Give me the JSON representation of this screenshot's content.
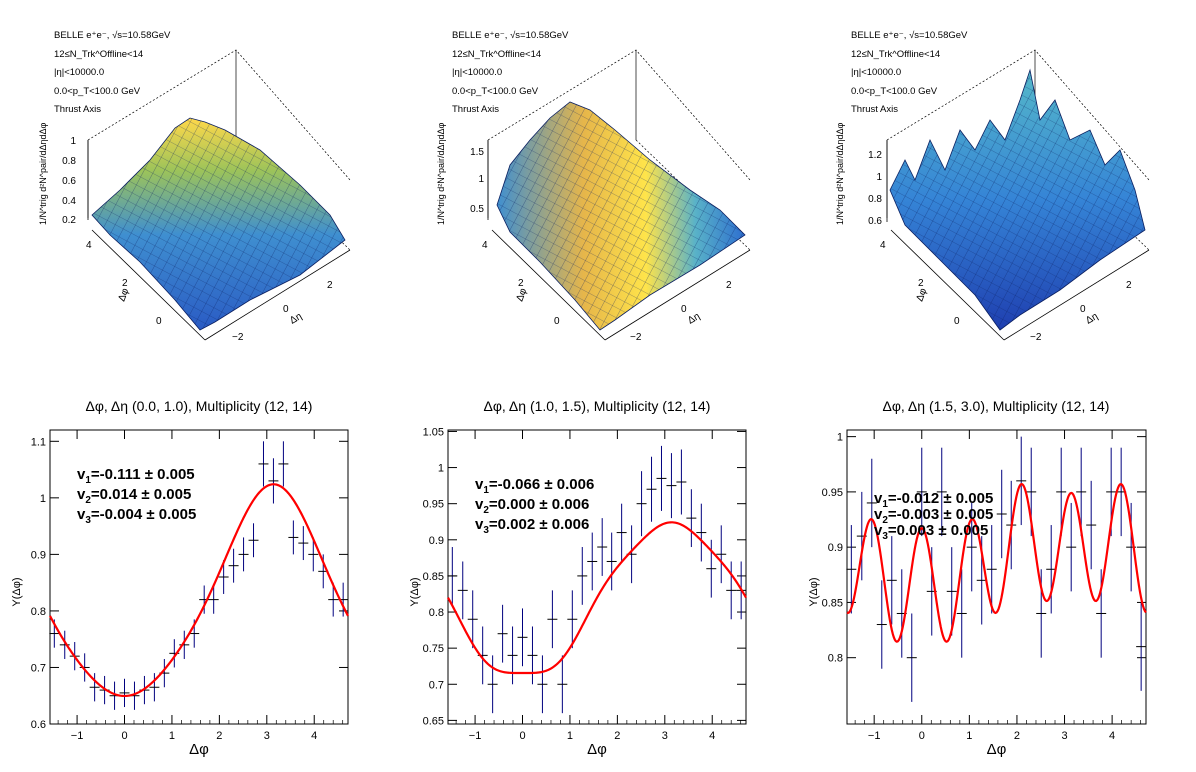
{
  "top_panels": [
    {
      "info": [
        "BELLE e⁺e⁻, √s=10.58GeV",
        "12≤N_Trk^Offline<14",
        "|η|<10000.0",
        "0.0<p_T<100.0 GeV",
        "Thrust Axis"
      ],
      "zlabel": "1/N^trig d²N^pair/dΔηdΔφ",
      "xlabel": "Δη",
      "ylabel": "Δφ",
      "zticks": [
        "0.2",
        "0.4",
        "0.6",
        "0.8",
        "1"
      ],
      "yticks": [
        "4",
        "2",
        "0"
      ],
      "xticks": [
        "2",
        "0",
        "−2"
      ],
      "surface": "peak"
    },
    {
      "info": [
        "BELLE e⁺e⁻, √s=10.58GeV",
        "12≤N_Trk^Offline<14",
        "|η|<10000.0",
        "0.0<p_T<100.0 GeV",
        "Thrust Axis"
      ],
      "zlabel": "1/N^trig d²N^pair/dΔηdΔφ",
      "xlabel": "Δη",
      "ylabel": "Δφ",
      "zticks": [
        "0.5",
        "1",
        "1.5"
      ],
      "yticks": [
        "4",
        "2",
        "0"
      ],
      "xticks": [
        "2",
        "0",
        "−2"
      ],
      "surface": "ridge"
    },
    {
      "info": [
        "BELLE e⁺e⁻, √s=10.58GeV",
        "12≤N_Trk^Offline<14",
        "|η|<10000.0",
        "0.0<p_T<100.0 GeV",
        "Thrust Axis"
      ],
      "zlabel": "1/N^trig d²N^pair/dΔηdΔφ",
      "xlabel": "Δη",
      "ylabel": "Δφ",
      "zticks": [
        "0.6",
        "0.8",
        "1",
        "1.2"
      ],
      "yticks": [
        "4",
        "2",
        "0"
      ],
      "xticks": [
        "2",
        "0",
        "−2"
      ],
      "surface": "noise"
    }
  ],
  "chart_data": [
    {
      "type": "scatter",
      "title": "Δφ, Δη (0.0, 1.0), Multiplicity (12, 14)",
      "xlabel": "Δφ",
      "ylabel": "Y(Δφ)",
      "xlim": [
        -1.571,
        4.712
      ],
      "ylim": [
        0.6,
        1.12
      ],
      "xticks": [
        -1,
        0,
        1,
        2,
        3,
        4
      ],
      "yticks": [
        0.6,
        0.7,
        0.8,
        0.9,
        1.0,
        1.1
      ],
      "ytick_labels": [
        "0.6",
        "0.7",
        "0.8",
        "0.9",
        "1",
        "1.1"
      ],
      "fit": {
        "c": 0.814,
        "v1": -0.111,
        "v2": 0.014,
        "v3": -0.004
      },
      "annotations": [
        "v1=-0.111 ± 0.005",
        "v2=0.014 ± 0.005",
        "v3=-0.004 ± 0.005"
      ],
      "points": [
        {
          "x": -1.48,
          "y": 0.76,
          "err": 0.025
        },
        {
          "x": -1.26,
          "y": 0.74,
          "err": 0.025
        },
        {
          "x": -1.05,
          "y": 0.72,
          "err": 0.025
        },
        {
          "x": -0.84,
          "y": 0.7,
          "err": 0.025
        },
        {
          "x": -0.63,
          "y": 0.665,
          "err": 0.025
        },
        {
          "x": -0.42,
          "y": 0.66,
          "err": 0.025
        },
        {
          "x": -0.21,
          "y": 0.65,
          "err": 0.025
        },
        {
          "x": 0.0,
          "y": 0.655,
          "err": 0.025
        },
        {
          "x": 0.21,
          "y": 0.65,
          "err": 0.025
        },
        {
          "x": 0.42,
          "y": 0.66,
          "err": 0.025
        },
        {
          "x": 0.63,
          "y": 0.665,
          "err": 0.025
        },
        {
          "x": 0.84,
          "y": 0.69,
          "err": 0.025
        },
        {
          "x": 1.05,
          "y": 0.725,
          "err": 0.025
        },
        {
          "x": 1.26,
          "y": 0.74,
          "err": 0.025
        },
        {
          "x": 1.47,
          "y": 0.76,
          "err": 0.025
        },
        {
          "x": 1.68,
          "y": 0.82,
          "err": 0.025
        },
        {
          "x": 1.88,
          "y": 0.82,
          "err": 0.025
        },
        {
          "x": 2.09,
          "y": 0.86,
          "err": 0.03
        },
        {
          "x": 2.3,
          "y": 0.88,
          "err": 0.03
        },
        {
          "x": 2.51,
          "y": 0.9,
          "err": 0.03
        },
        {
          "x": 2.72,
          "y": 0.925,
          "err": 0.03
        },
        {
          "x": 2.93,
          "y": 1.06,
          "err": 0.04
        },
        {
          "x": 3.14,
          "y": 1.03,
          "err": 0.04
        },
        {
          "x": 3.35,
          "y": 1.06,
          "err": 0.04
        },
        {
          "x": 3.56,
          "y": 0.93,
          "err": 0.03
        },
        {
          "x": 3.77,
          "y": 0.92,
          "err": 0.03
        },
        {
          "x": 3.98,
          "y": 0.9,
          "err": 0.03
        },
        {
          "x": 4.19,
          "y": 0.87,
          "err": 0.03
        },
        {
          "x": 4.4,
          "y": 0.82,
          "err": 0.03
        },
        {
          "x": 4.61,
          "y": 0.82,
          "err": 0.03
        }
      ]
    },
    {
      "type": "scatter",
      "title": "Δφ, Δη (1.0, 1.5), Multiplicity (12, 14)",
      "xlabel": "Δφ",
      "ylabel": "Y(Δφ)",
      "xlim": [
        -1.571,
        4.712
      ],
      "ylim": [
        0.645,
        1.052
      ],
      "xticks": [
        -1,
        0,
        1,
        2,
        3,
        4
      ],
      "yticks": [
        0.65,
        0.7,
        0.75,
        0.8,
        0.85,
        0.9,
        0.95,
        1.0,
        1.05
      ],
      "ytick_labels": [
        "0.65",
        "0.7",
        "0.75",
        "0.8",
        "0.85",
        "0.9",
        "0.95",
        "1",
        "1.05"
      ],
      "fit": {
        "c": 0.815,
        "v1": -0.066,
        "v2": 0.0,
        "v3": 0.002,
        "v4": 0.003
      },
      "annotations": [
        "v1=-0.066 ± 0.006",
        "v2=0.000 ± 0.006",
        "v3=0.002 ± 0.006"
      ],
      "points": [
        {
          "x": -1.48,
          "y": 0.85,
          "err": 0.04
        },
        {
          "x": -1.26,
          "y": 0.83,
          "err": 0.04
        },
        {
          "x": -1.05,
          "y": 0.79,
          "err": 0.04
        },
        {
          "x": -0.84,
          "y": 0.74,
          "err": 0.04
        },
        {
          "x": -0.63,
          "y": 0.7,
          "err": 0.04
        },
        {
          "x": -0.42,
          "y": 0.77,
          "err": 0.04
        },
        {
          "x": -0.21,
          "y": 0.74,
          "err": 0.04
        },
        {
          "x": 0.0,
          "y": 0.765,
          "err": 0.04
        },
        {
          "x": 0.21,
          "y": 0.74,
          "err": 0.04
        },
        {
          "x": 0.42,
          "y": 0.7,
          "err": 0.04
        },
        {
          "x": 0.63,
          "y": 0.79,
          "err": 0.04
        },
        {
          "x": 0.84,
          "y": 0.7,
          "err": 0.04
        },
        {
          "x": 1.05,
          "y": 0.79,
          "err": 0.04
        },
        {
          "x": 1.26,
          "y": 0.85,
          "err": 0.04
        },
        {
          "x": 1.47,
          "y": 0.87,
          "err": 0.04
        },
        {
          "x": 1.68,
          "y": 0.89,
          "err": 0.04
        },
        {
          "x": 1.88,
          "y": 0.87,
          "err": 0.04
        },
        {
          "x": 2.09,
          "y": 0.91,
          "err": 0.04
        },
        {
          "x": 2.3,
          "y": 0.88,
          "err": 0.04
        },
        {
          "x": 2.51,
          "y": 0.95,
          "err": 0.045
        },
        {
          "x": 2.72,
          "y": 0.97,
          "err": 0.045
        },
        {
          "x": 2.93,
          "y": 0.985,
          "err": 0.045
        },
        {
          "x": 3.14,
          "y": 0.975,
          "err": 0.045
        },
        {
          "x": 3.35,
          "y": 0.98,
          "err": 0.045
        },
        {
          "x": 3.56,
          "y": 0.93,
          "err": 0.04
        },
        {
          "x": 3.77,
          "y": 0.91,
          "err": 0.04
        },
        {
          "x": 3.98,
          "y": 0.86,
          "err": 0.04
        },
        {
          "x": 4.19,
          "y": 0.88,
          "err": 0.04
        },
        {
          "x": 4.4,
          "y": 0.83,
          "err": 0.04
        },
        {
          "x": 4.61,
          "y": 0.83,
          "err": 0.04
        }
      ]
    },
    {
      "type": "scatter",
      "title": "Δφ, Δη (1.5, 3.0), Multiplicity (12, 14)",
      "xlabel": "Δφ",
      "ylabel": "Y(Δφ)",
      "xlim": [
        -1.571,
        4.712
      ],
      "ylim": [
        0.74,
        1.006
      ],
      "xticks": [
        -1,
        0,
        1,
        2,
        3,
        4
      ],
      "yticks": [
        0.8,
        0.85,
        0.9,
        0.95,
        1.0
      ],
      "ytick_labels": [
        "0.8",
        "0.85",
        "0.9",
        "0.95",
        "1"
      ],
      "fit": {
        "c": 0.887,
        "v1": -0.012,
        "v2": -0.003,
        "v3": 0.003,
        "v6": 0.029
      },
      "annotations": [
        "v1=-0.012 ± 0.005",
        "v2=-0.003 ± 0.005",
        "v3=0.003 ± 0.005"
      ],
      "points": [
        {
          "x": -1.48,
          "y": 0.88,
          "err": 0.04
        },
        {
          "x": -1.26,
          "y": 0.91,
          "err": 0.04
        },
        {
          "x": -1.05,
          "y": 0.94,
          "err": 0.04
        },
        {
          "x": -0.84,
          "y": 0.83,
          "err": 0.04
        },
        {
          "x": -0.63,
          "y": 0.87,
          "err": 0.04
        },
        {
          "x": -0.42,
          "y": 0.84,
          "err": 0.04
        },
        {
          "x": -0.21,
          "y": 0.8,
          "err": 0.04
        },
        {
          "x": 0.0,
          "y": 0.95,
          "err": 0.04
        },
        {
          "x": 0.21,
          "y": 0.86,
          "err": 0.04
        },
        {
          "x": 0.42,
          "y": 0.95,
          "err": 0.04
        },
        {
          "x": 0.63,
          "y": 0.86,
          "err": 0.04
        },
        {
          "x": 0.84,
          "y": 0.84,
          "err": 0.04
        },
        {
          "x": 1.05,
          "y": 0.9,
          "err": 0.04
        },
        {
          "x": 1.26,
          "y": 0.87,
          "err": 0.04
        },
        {
          "x": 1.47,
          "y": 0.88,
          "err": 0.04
        },
        {
          "x": 1.68,
          "y": 0.93,
          "err": 0.04
        },
        {
          "x": 1.88,
          "y": 0.92,
          "err": 0.04
        },
        {
          "x": 2.09,
          "y": 0.96,
          "err": 0.04
        },
        {
          "x": 2.3,
          "y": 0.95,
          "err": 0.04
        },
        {
          "x": 2.51,
          "y": 0.84,
          "err": 0.04
        },
        {
          "x": 2.72,
          "y": 0.88,
          "err": 0.04
        },
        {
          "x": 2.93,
          "y": 0.95,
          "err": 0.04
        },
        {
          "x": 3.14,
          "y": 0.9,
          "err": 0.04
        },
        {
          "x": 3.35,
          "y": 0.95,
          "err": 0.04
        },
        {
          "x": 3.56,
          "y": 0.92,
          "err": 0.04
        },
        {
          "x": 3.77,
          "y": 0.84,
          "err": 0.04
        },
        {
          "x": 3.98,
          "y": 0.95,
          "err": 0.04
        },
        {
          "x": 4.19,
          "y": 0.95,
          "err": 0.04
        },
        {
          "x": 4.4,
          "y": 0.9,
          "err": 0.04
        },
        {
          "x": 4.61,
          "y": 0.81,
          "err": 0.04
        }
      ]
    }
  ],
  "colors": {
    "fit": "#ff0000",
    "points": "#00007f",
    "axis": "#000000"
  }
}
